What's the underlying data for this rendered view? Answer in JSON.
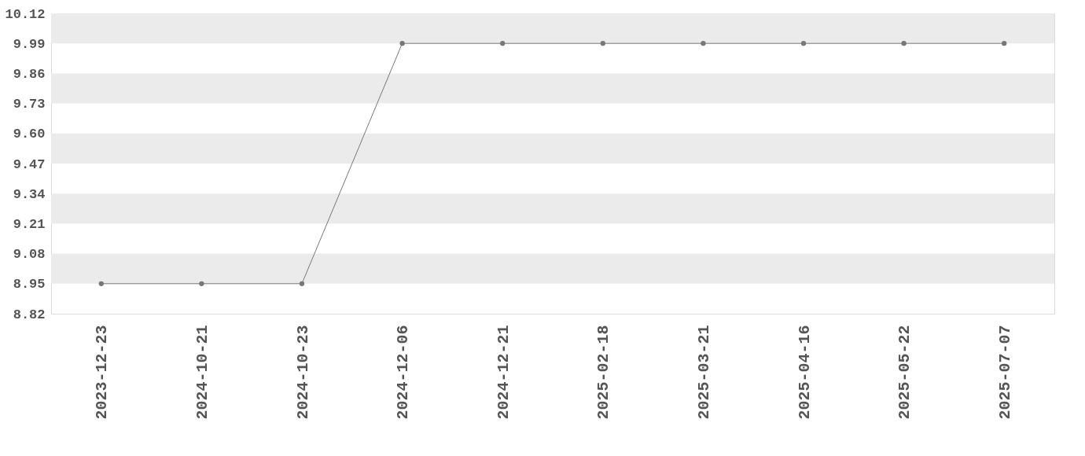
{
  "chart_data": {
    "type": "line",
    "categories": [
      "2023-12-23",
      "2024-10-21",
      "2024-10-23",
      "2024-12-06",
      "2024-12-21",
      "2025-02-18",
      "2025-03-21",
      "2025-04-16",
      "2025-05-22",
      "2025-07-07"
    ],
    "series": [
      {
        "color": "#777777",
        "values": [
          8.95,
          8.95,
          8.95,
          9.99,
          9.99,
          9.99,
          9.99,
          9.99,
          9.99,
          9.99
        ]
      }
    ],
    "ylim": [
      8.82,
      10.12
    ],
    "yticks": [
      8.82,
      8.95,
      9.08,
      9.21,
      9.34,
      9.47,
      {
        "value": 9.6,
        "label": "9.60"
      },
      9.73,
      9.86,
      9.99,
      10.12
    ],
    "bands": [
      {
        "axis": "y",
        "from": 8.95,
        "to": 9.08,
        "color": "#ebebeb"
      },
      {
        "axis": "y",
        "from": 9.21,
        "to": 9.34,
        "color": "#ebebeb"
      },
      {
        "axis": "y",
        "from": 9.47,
        "to": 9.6,
        "color": "#ebebeb"
      },
      {
        "axis": "y",
        "from": 9.73,
        "to": 9.86,
        "color": "#ebebeb"
      },
      {
        "axis": "y",
        "from": 9.99,
        "to": 10.12,
        "color": "#ebebeb"
      }
    ],
    "marker": "circle",
    "line_style": "solid"
  }
}
